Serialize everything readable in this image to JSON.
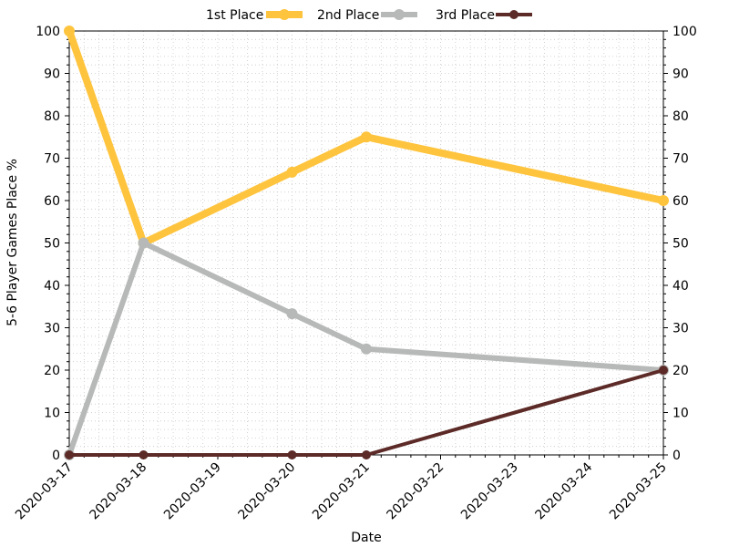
{
  "chart_data": {
    "type": "line",
    "xlabel": "Date",
    "ylabel": "5-6 Player Games Place %",
    "x_ticks": [
      "2020-03-17",
      "2020-03-18",
      "2020-03-19",
      "2020-03-20",
      "2020-03-21",
      "2020-03-22",
      "2020-03-23",
      "2020-03-24",
      "2020-03-25"
    ],
    "ylim": [
      0,
      100
    ],
    "y_ticks": [
      0,
      10,
      20,
      30,
      40,
      50,
      60,
      70,
      80,
      90,
      100
    ],
    "grid": "dotted-major-minor",
    "legend_position": "top-center",
    "series": [
      {
        "name": "1st Place",
        "color": "#FFC43D",
        "points": [
          {
            "x": "2020-03-17",
            "y": 100
          },
          {
            "x": "2020-03-18",
            "y": 50
          },
          {
            "x": "2020-03-20",
            "y": 66.7
          },
          {
            "x": "2020-03-21",
            "y": 75
          },
          {
            "x": "2020-03-25",
            "y": 60
          }
        ]
      },
      {
        "name": "2nd Place",
        "color": "#B6B9B7",
        "points": [
          {
            "x": "2020-03-17",
            "y": 0
          },
          {
            "x": "2020-03-18",
            "y": 50
          },
          {
            "x": "2020-03-20",
            "y": 33.3
          },
          {
            "x": "2020-03-21",
            "y": 25
          },
          {
            "x": "2020-03-25",
            "y": 20
          }
        ]
      },
      {
        "name": "3rd Place",
        "color": "#5C2A27",
        "points": [
          {
            "x": "2020-03-17",
            "y": 0
          },
          {
            "x": "2020-03-18",
            "y": 0
          },
          {
            "x": "2020-03-20",
            "y": 0
          },
          {
            "x": "2020-03-21",
            "y": 0
          },
          {
            "x": "2020-03-25",
            "y": 20
          }
        ]
      }
    ]
  }
}
